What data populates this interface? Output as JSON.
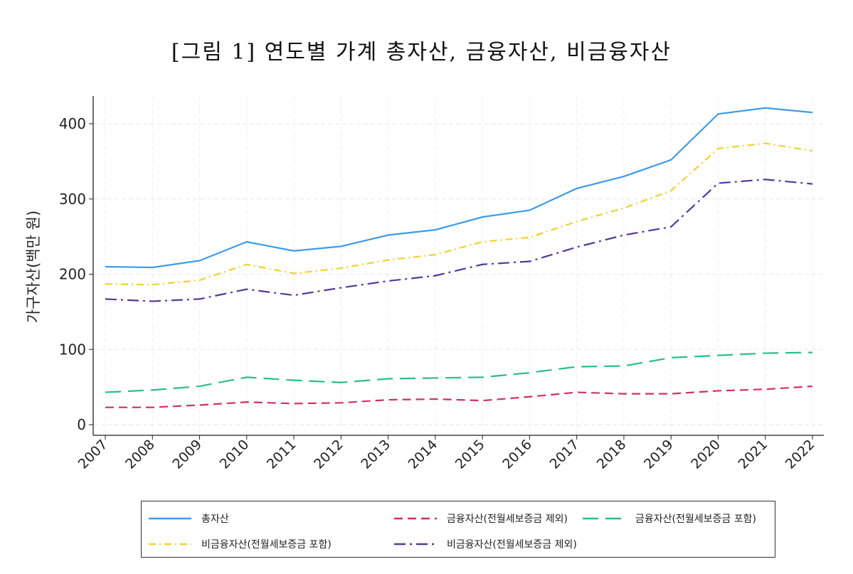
{
  "title": "[그림 1] 연도별 가계 총자산, 금융자산, 비금융자산",
  "chart_data": {
    "type": "line",
    "title": "[그림 1] 연도별 가계 총자산, 금융자산, 비금융자산",
    "xlabel": "",
    "ylabel": "가구자산(백만 원)",
    "ylim": [
      0,
      430
    ],
    "yticks": [
      0,
      100,
      200,
      300,
      400
    ],
    "grid": true,
    "legend_position": "bottom",
    "x": [
      2007,
      2008,
      2009,
      2010,
      2011,
      2012,
      2013,
      2014,
      2015,
      2016,
      2017,
      2018,
      2019,
      2020,
      2021,
      2022
    ],
    "series": [
      {
        "name": "총자산",
        "color": "#3d9be9",
        "dash": "solid",
        "values": [
          210,
          209,
          218,
          243,
          231,
          237,
          252,
          259,
          276,
          285,
          314,
          330,
          352,
          413,
          421,
          415
        ]
      },
      {
        "name": "금융자산(전월세보증금 제외)",
        "color": "#d12f63",
        "dash": "dash",
        "values": [
          23,
          23,
          26,
          30,
          28,
          29,
          33,
          34,
          32,
          37,
          43,
          41,
          41,
          45,
          47,
          51
        ]
      },
      {
        "name": "금융자산(전월세보증금 포함)",
        "color": "#27bd8c",
        "dash": "longdash",
        "values": [
          43,
          46,
          51,
          63,
          59,
          56,
          61,
          62,
          63,
          69,
          77,
          78,
          89,
          92,
          95,
          96
        ]
      },
      {
        "name": "비금융자산(전월세보증금 포함)",
        "color": "#f2d12e",
        "dash": "dashdot",
        "values": [
          187,
          186,
          192,
          213,
          201,
          208,
          219,
          226,
          243,
          249,
          270,
          288,
          311,
          367,
          374,
          364
        ]
      },
      {
        "name": "비금융자산(전월세보증금 제외)",
        "color": "#55389a",
        "dash": "longdashdot",
        "values": [
          167,
          164,
          167,
          180,
          172,
          182,
          191,
          198,
          213,
          217,
          236,
          252,
          263,
          321,
          326,
          320
        ]
      }
    ]
  }
}
